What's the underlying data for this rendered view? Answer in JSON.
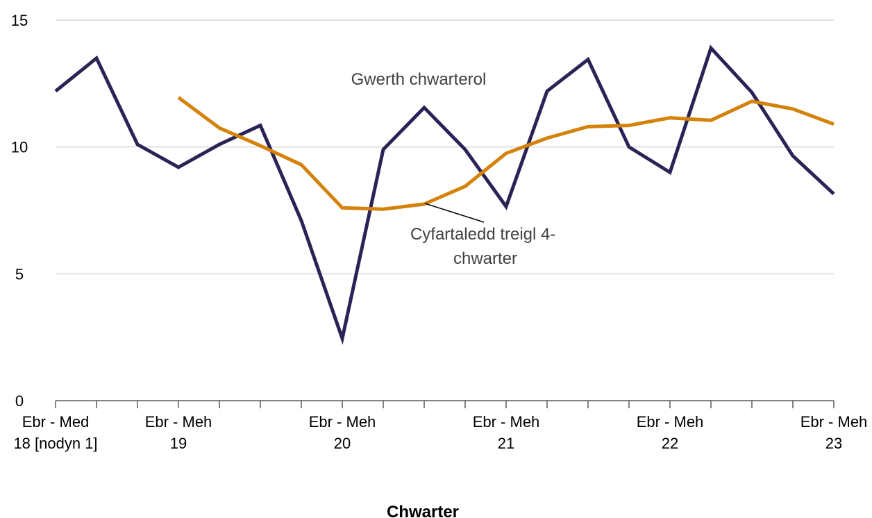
{
  "chart_data": {
    "type": "line",
    "xlabel": "Chwarter",
    "ylabel": "",
    "ylim": [
      0,
      15
    ],
    "y_ticks": [
      0,
      5,
      10,
      15
    ],
    "grid": true,
    "x_tick_labels": [
      {
        "index": 0,
        "line1": "Ebr - Med",
        "line2": "18 [nodyn 1]"
      },
      {
        "index": 3,
        "line1": "Ebr - Meh",
        "line2": "19"
      },
      {
        "index": 7,
        "line1": "Ebr - Meh",
        "line2": "20"
      },
      {
        "index": 11,
        "line1": "Ebr - Meh",
        "line2": "21"
      },
      {
        "index": 15,
        "line1": "Ebr - Meh",
        "line2": "22"
      },
      {
        "index": 19,
        "line1": "Ebr - Meh",
        "line2": "23"
      }
    ],
    "series": [
      {
        "name": "Gwerth chwarterol",
        "color": "#2a2456",
        "values": [
          12.2,
          13.5,
          10.1,
          9.2,
          10.1,
          10.85,
          7.1,
          2.45,
          9.9,
          11.55,
          9.9,
          7.65,
          12.2,
          13.45,
          10.0,
          9.0,
          13.9,
          12.15,
          9.65,
          8.15
        ]
      },
      {
        "name": "Cyfartaledd treigl 4-chwarter",
        "color": "#d4820a",
        "values": [
          null,
          null,
          null,
          11.95,
          10.75,
          10.05,
          9.3,
          7.6,
          7.55,
          7.75,
          8.45,
          9.75,
          10.35,
          10.8,
          10.85,
          11.15,
          11.05,
          11.8,
          11.5,
          10.9
        ]
      }
    ],
    "annotations": [
      {
        "series": 0,
        "text_lines": [
          "Gwerth chwarterol"
        ]
      },
      {
        "series": 1,
        "text_lines": [
          "Cyfartaledd treigl 4-",
          "chwarter"
        ]
      }
    ]
  }
}
